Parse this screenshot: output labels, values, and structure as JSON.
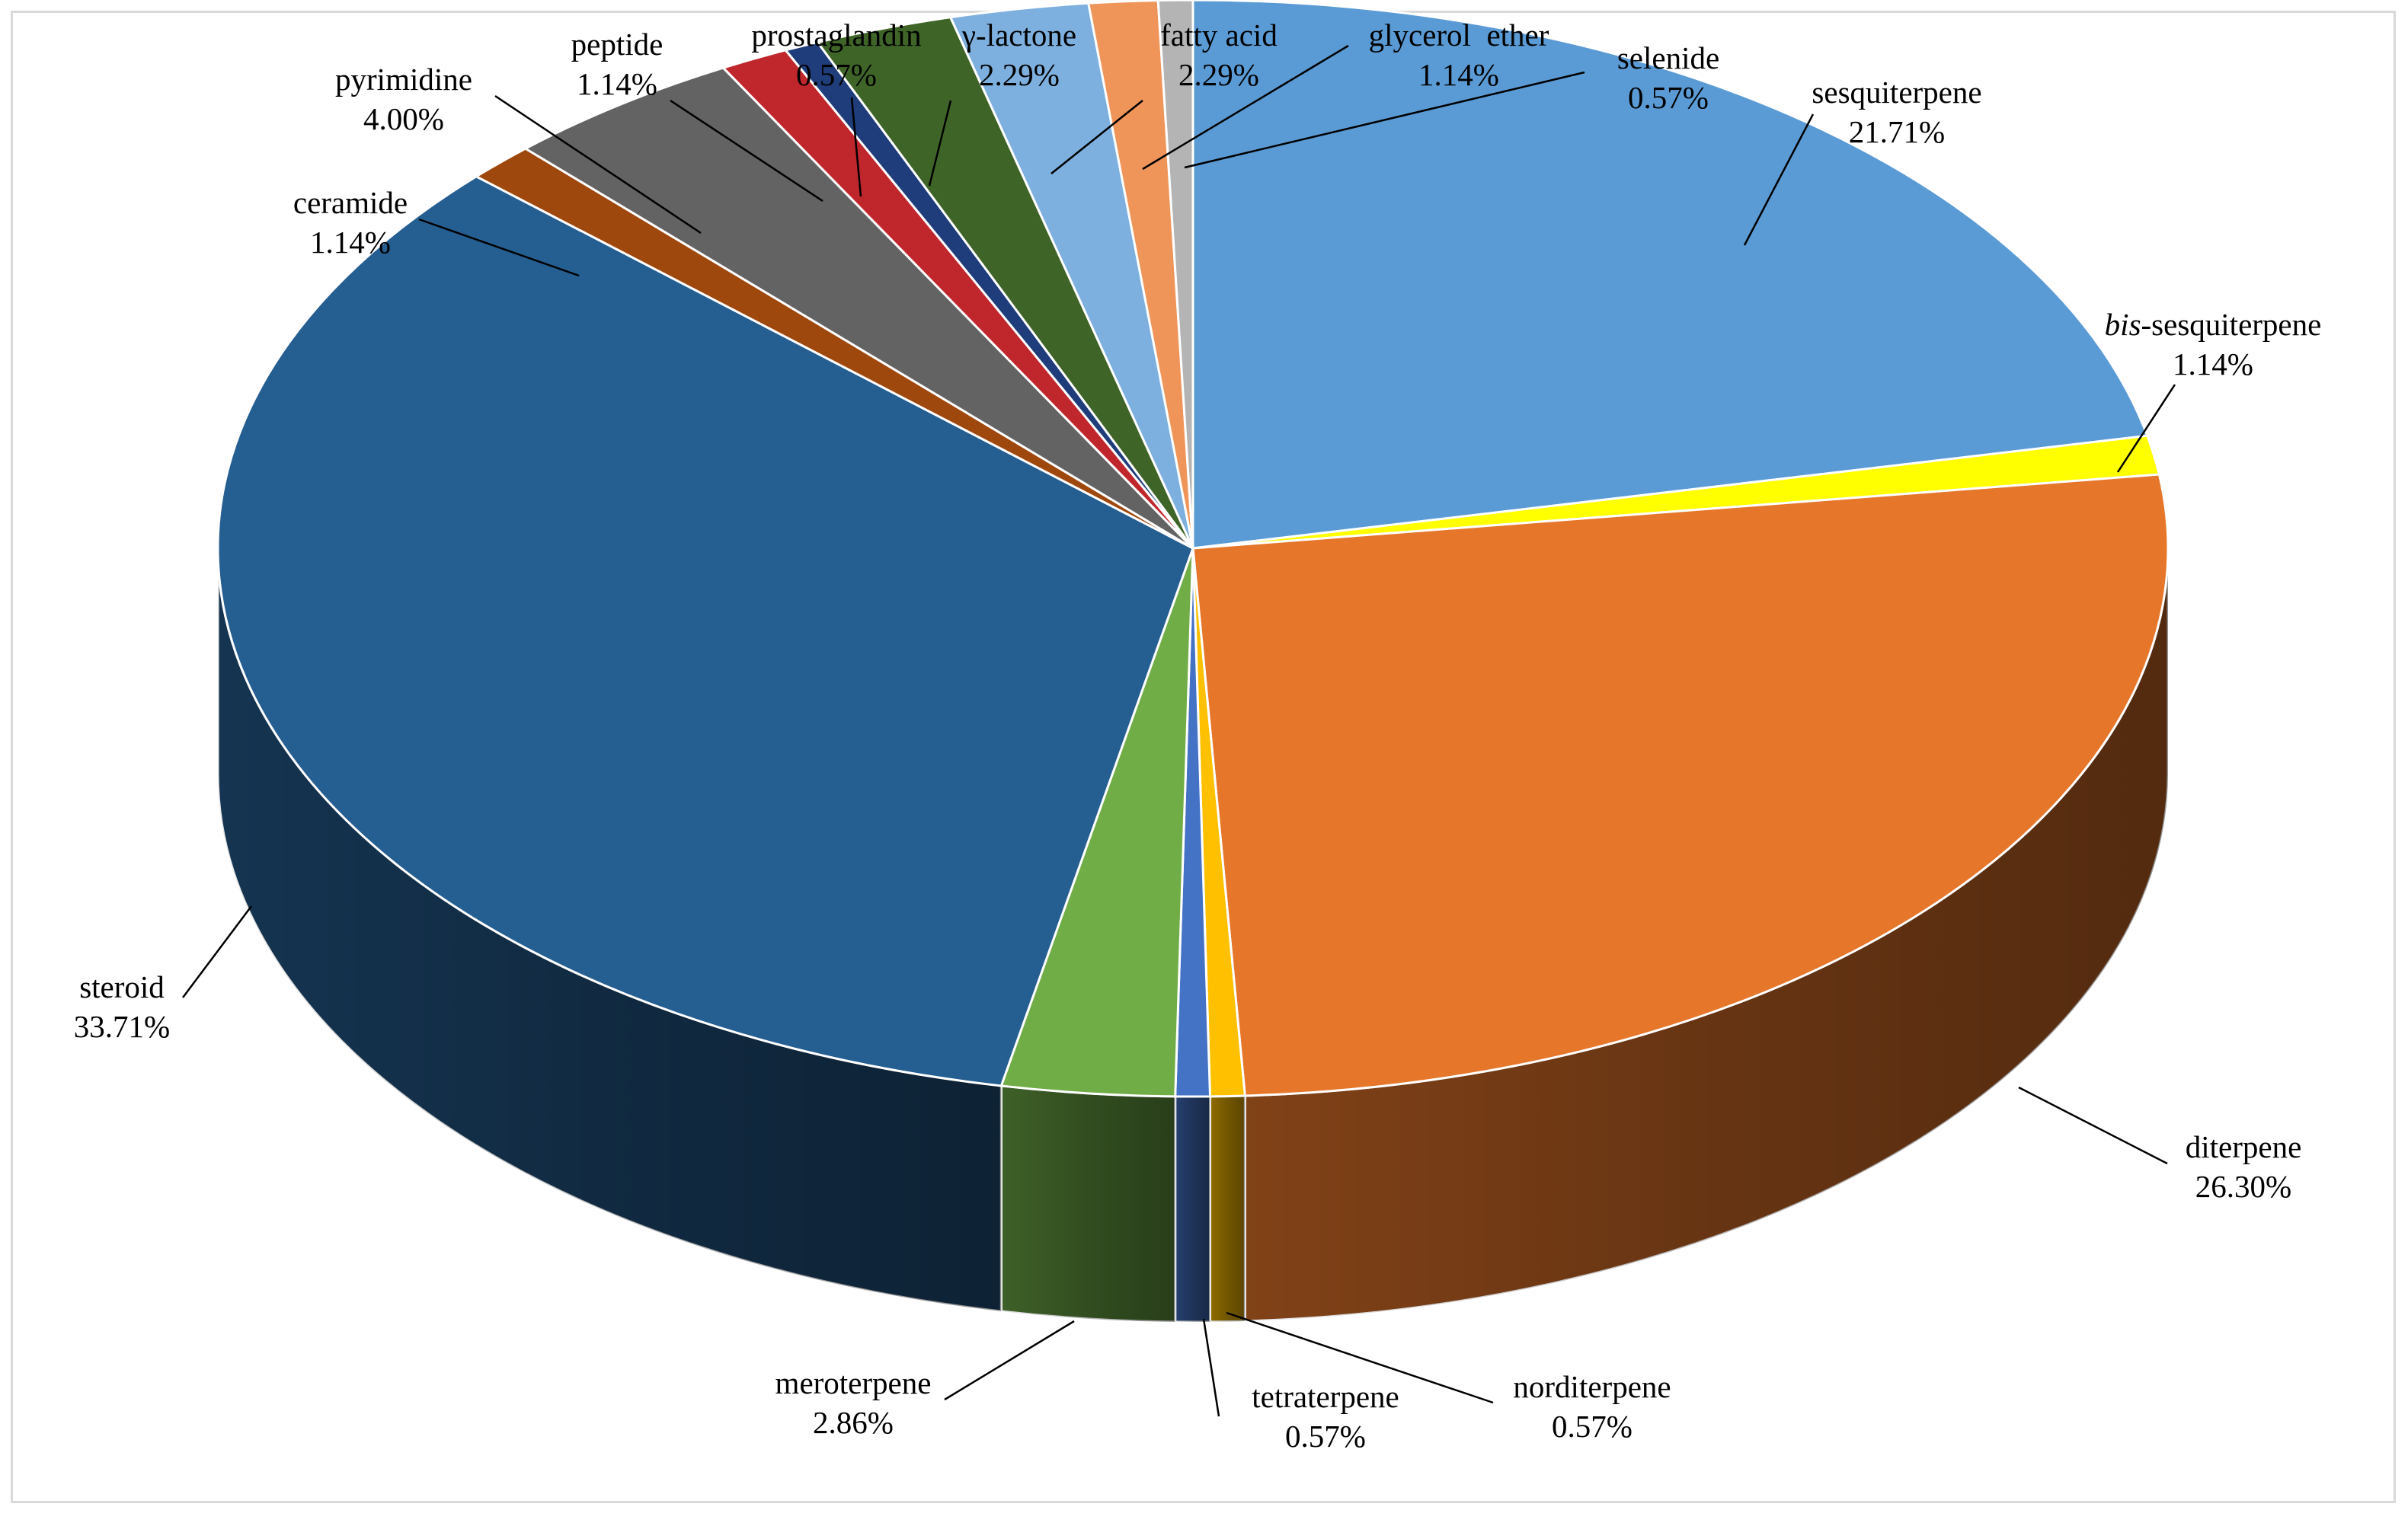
{
  "chart_data": {
    "type": "pie",
    "style": "3d",
    "title": "",
    "slices": [
      {
        "name": "sesquiterpene",
        "value": 21.71,
        "label": "21.71%",
        "color": "#5B9BD5"
      },
      {
        "name": "bis-sesquiterpene",
        "value": 1.14,
        "label": "1.14%",
        "color": "#FFFF00"
      },
      {
        "name": "diterpene",
        "value": 26.3,
        "label": "26.30%",
        "color": "#E6762A"
      },
      {
        "name": "norditerpene",
        "value": 0.57,
        "label": "0.57%",
        "color": "#FFC000"
      },
      {
        "name": "tetraterpene",
        "value": 0.57,
        "label": "0.57%",
        "color": "#4472C4"
      },
      {
        "name": "meroterpene",
        "value": 2.86,
        "label": "2.86%",
        "color": "#70AD47"
      },
      {
        "name": "steroid",
        "value": 33.71,
        "label": "33.71%",
        "color": "#255E91"
      },
      {
        "name": "ceramide",
        "value": 1.14,
        "label": "1.14%",
        "color": "#9E480E"
      },
      {
        "name": "pyrimidine",
        "value": 4.0,
        "label": "4.00%",
        "color": "#636363"
      },
      {
        "name": "peptide",
        "value": 1.14,
        "label": "1.14%",
        "color": "#C0272D"
      },
      {
        "name": "prostaglandin",
        "value": 0.57,
        "label": "0.57%",
        "color": "#1F3D7A"
      },
      {
        "name": "γ-lactone",
        "value": 2.29,
        "label": "2.29%",
        "color": "#3F6428"
      },
      {
        "name": "fatty acid",
        "value": 2.29,
        "label": "2.29%",
        "color": "#7EB0DF"
      },
      {
        "name": "glycerol  ether",
        "value": 1.14,
        "label": "1.14%",
        "color": "#F0955A"
      },
      {
        "name": "selenide",
        "value": 0.57,
        "label": "0.57%",
        "color": "#B4B4B4"
      }
    ]
  }
}
